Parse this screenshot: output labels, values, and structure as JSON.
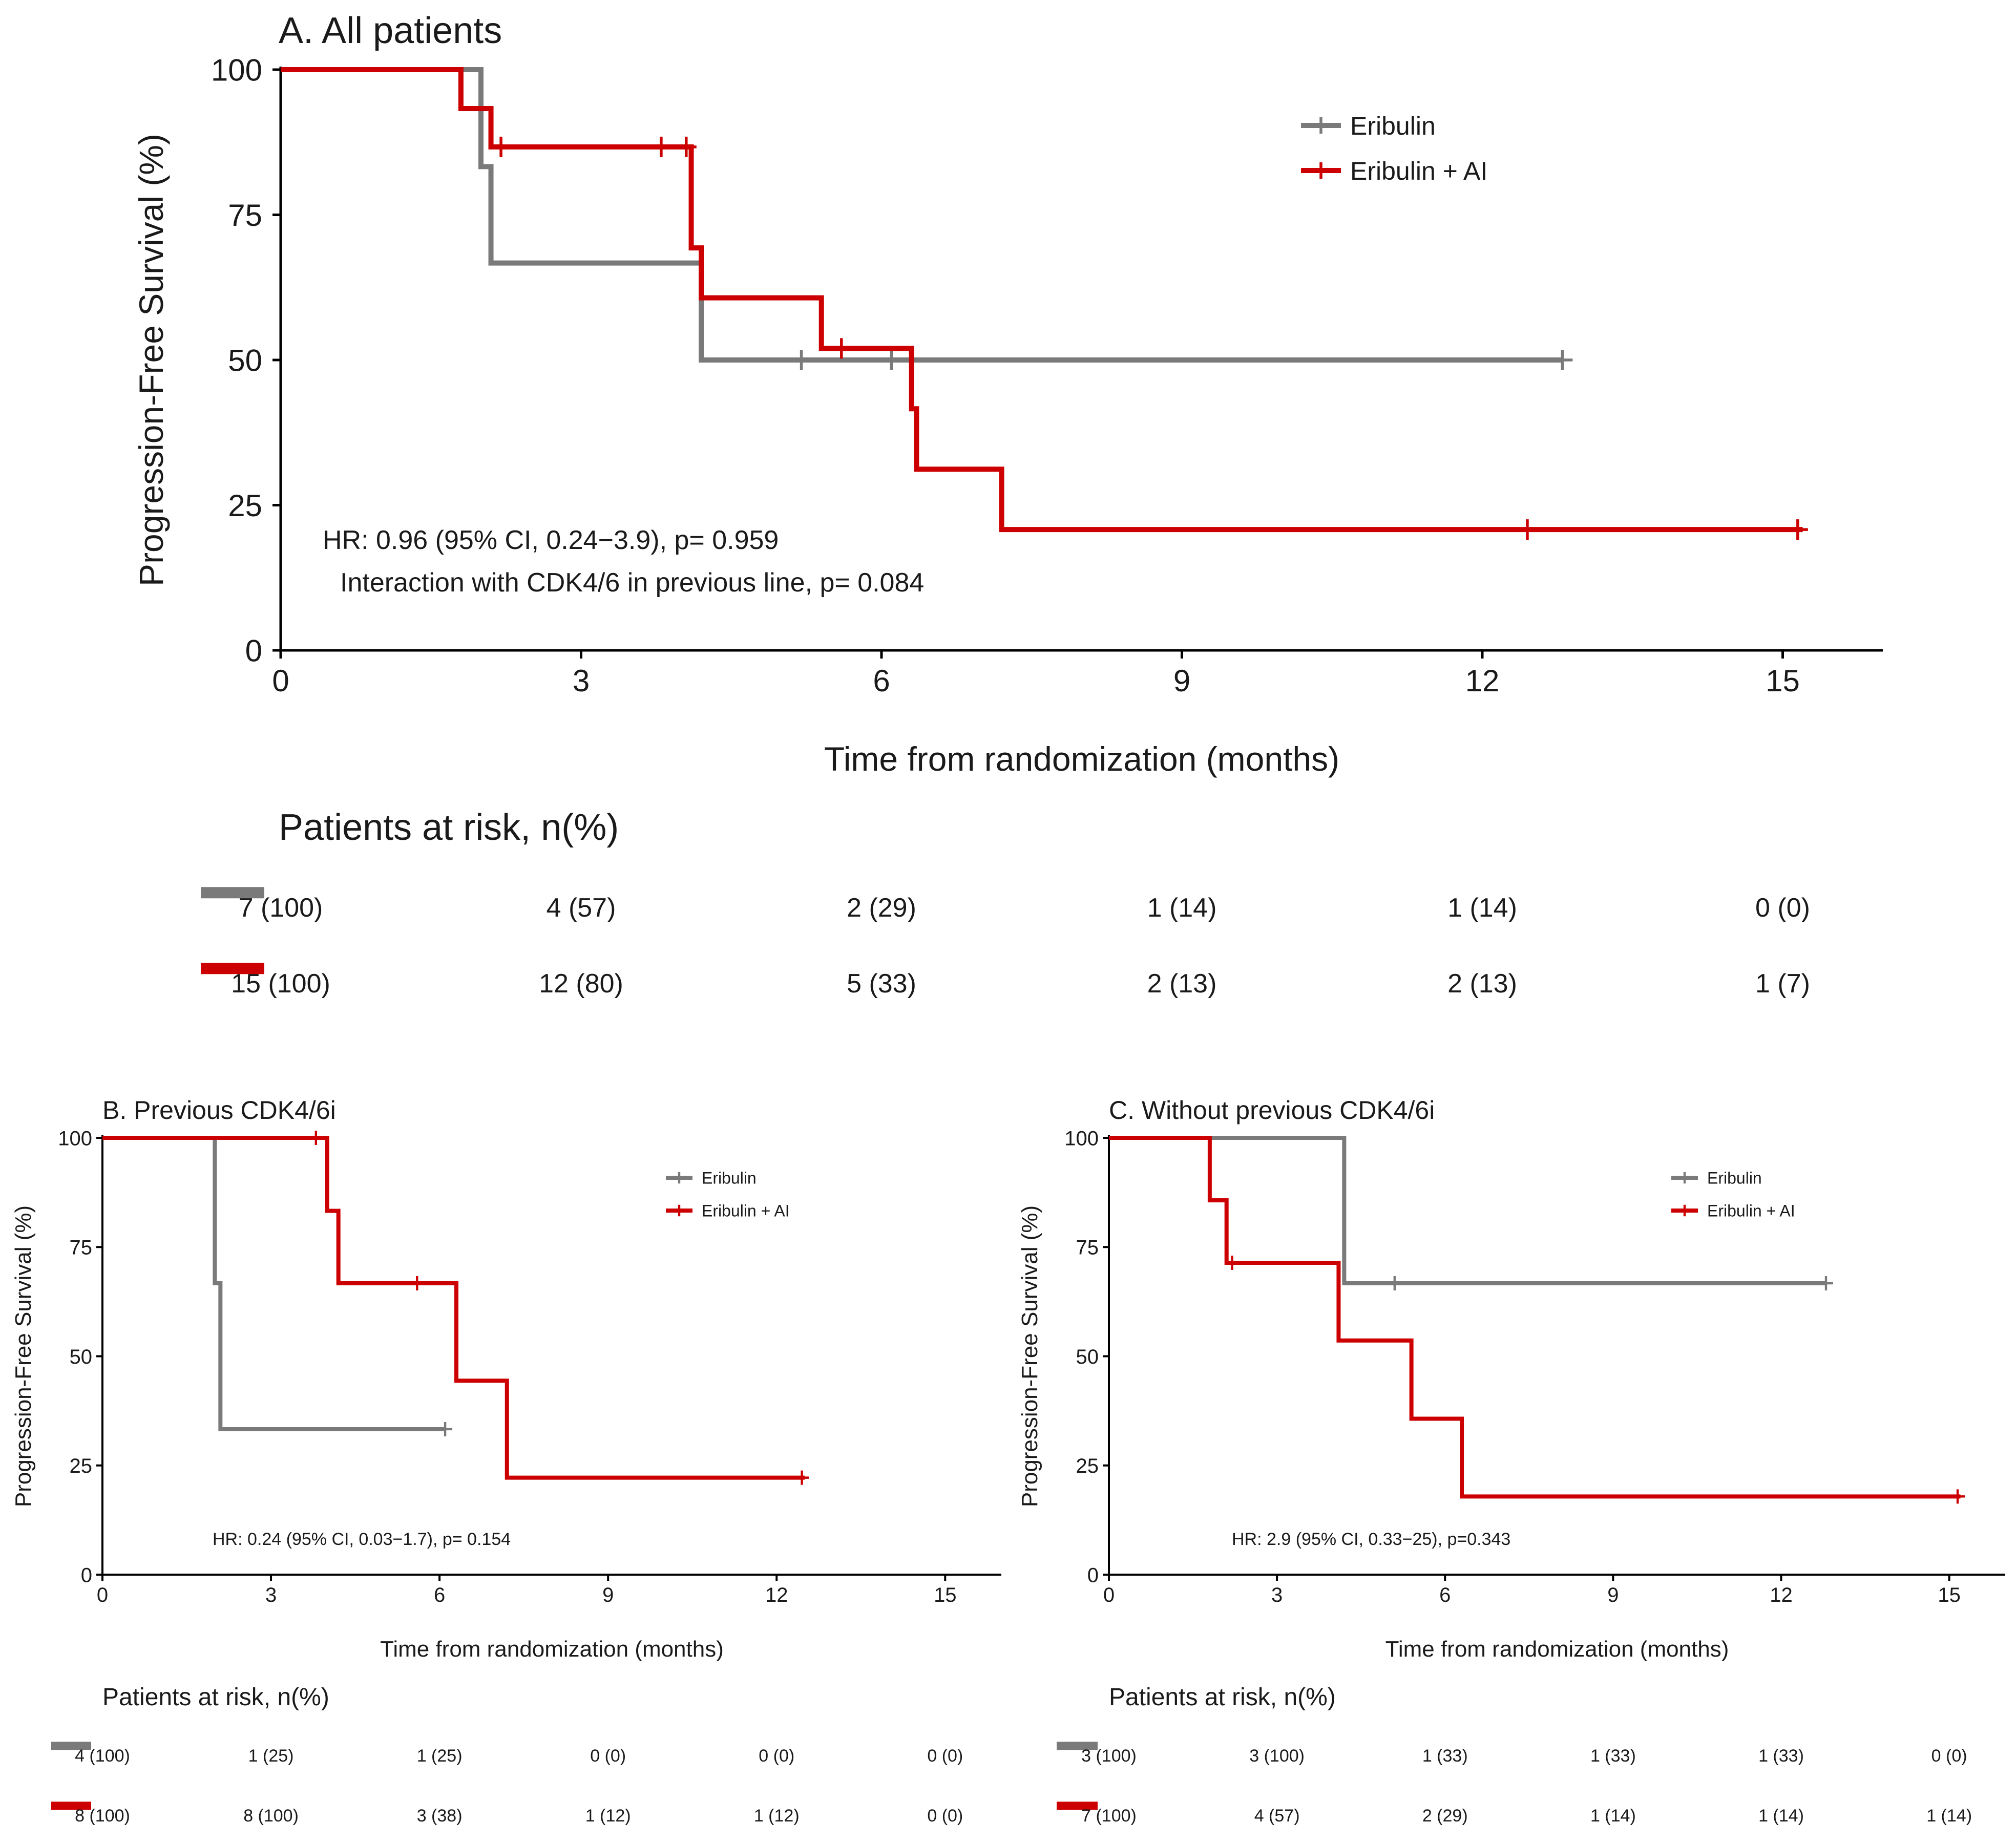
{
  "colors": {
    "eribulin": "#7a7a7a",
    "eribulin_ai": "#cc0000",
    "axis": "#000000",
    "text": "#1a1a1a"
  },
  "chart_data": [
    {
      "id": "A",
      "type": "line",
      "subtype": "kaplan-meier",
      "title": "A. All patients",
      "xlabel": "Time from randomization (months)",
      "ylabel": "Progression-Free Survival (%)",
      "xlim": [
        0,
        16
      ],
      "ylim": [
        0,
        100
      ],
      "x_ticks": [
        0,
        3,
        6,
        9,
        12,
        15
      ],
      "x_tick_labels": [
        "0",
        "3",
        "6",
        "9",
        "12",
        "15"
      ],
      "y_ticks": [
        0,
        25,
        50,
        75,
        100
      ],
      "y_tick_labels": [
        "0",
        "25",
        "50",
        "75",
        "100"
      ],
      "grid": false,
      "legend": {
        "position": "top-right",
        "entries": [
          "Eribulin",
          "Eribulin + AI"
        ]
      },
      "annotations": [
        "HR: 0.96 (95% CI, 0.24−3.9), p= 0.959",
        "Interaction with CDK4/6 in previous line, p= 0.084"
      ],
      "series": [
        {
          "name": "Eribulin",
          "color": "#7a7a7a",
          "steps": [
            [
              0,
              100
            ],
            [
              2.0,
              83.3
            ],
            [
              2.1,
              66.7
            ],
            [
              4.2,
              50
            ],
            [
              12.8,
              50
            ]
          ],
          "censors": [
            [
              5.2,
              50
            ],
            [
              6.1,
              50
            ],
            [
              12.8,
              50
            ]
          ]
        },
        {
          "name": "Eribulin + AI",
          "color": "#cc0000",
          "steps": [
            [
              0,
              100
            ],
            [
              1.8,
              93.3
            ],
            [
              2.1,
              86.7
            ],
            [
              4.1,
              69.3
            ],
            [
              4.2,
              60.7
            ],
            [
              5.4,
              52
            ],
            [
              6.3,
              41.6
            ],
            [
              6.35,
              31.2
            ],
            [
              7.2,
              20.8
            ],
            [
              15.2,
              20.8
            ]
          ],
          "censors": [
            [
              2.2,
              86.7
            ],
            [
              3.8,
              86.7
            ],
            [
              4.05,
              86.7
            ],
            [
              5.6,
              52
            ],
            [
              12.45,
              20.8
            ],
            [
              15.15,
              20.8
            ]
          ]
        }
      ],
      "risk_table": {
        "title": "Patients at risk, n(%)",
        "times": [
          0,
          3,
          6,
          9,
          12,
          15
        ],
        "rows": [
          {
            "name": "Eribulin",
            "values": [
              "7 (100)",
              "4 (57)",
              "2 (29)",
              "1 (14)",
              "1 (14)",
              "0 (0)"
            ]
          },
          {
            "name": "Eribulin + AI",
            "values": [
              "15 (100)",
              "12 (80)",
              "5 (33)",
              "2 (13)",
              "2 (13)",
              "1 (7)"
            ]
          }
        ]
      }
    },
    {
      "id": "B",
      "type": "line",
      "subtype": "kaplan-meier",
      "title": "B. Previous CDK4/6i",
      "xlabel": "Time from randomization (months)",
      "ylabel": "Progression-Free Survival (%)",
      "xlim": [
        0,
        16
      ],
      "ylim": [
        0,
        100
      ],
      "x_ticks": [
        0,
        3,
        6,
        9,
        12,
        15
      ],
      "x_tick_labels": [
        "0",
        "3",
        "6",
        "9",
        "12",
        "15"
      ],
      "y_ticks": [
        0,
        25,
        50,
        75,
        100
      ],
      "y_tick_labels": [
        "0",
        "25",
        "50",
        "75",
        "100"
      ],
      "grid": false,
      "legend": {
        "position": "top-right",
        "entries": [
          "Eribulin",
          "Eribulin + AI"
        ]
      },
      "annotations": [
        "HR: 0.24 (95% CI, 0.03−1.7), p= 0.154"
      ],
      "series": [
        {
          "name": "Eribulin",
          "color": "#7a7a7a",
          "steps": [
            [
              0,
              100
            ],
            [
              2.0,
              66.7
            ],
            [
              2.1,
              33.3
            ],
            [
              6.1,
              33.3
            ]
          ],
          "censors": [
            [
              6.1,
              33.3
            ]
          ]
        },
        {
          "name": "Eribulin + AI",
          "color": "#cc0000",
          "steps": [
            [
              0,
              100
            ],
            [
              4.0,
              83.3
            ],
            [
              4.2,
              66.7
            ],
            [
              6.3,
              44.4
            ],
            [
              7.2,
              22.2
            ],
            [
              12.5,
              22.2
            ]
          ],
          "censors": [
            [
              3.8,
              100
            ],
            [
              5.6,
              66.7
            ],
            [
              12.45,
              22.2
            ]
          ]
        }
      ],
      "risk_table": {
        "title": "Patients at risk, n(%)",
        "times": [
          0,
          3,
          6,
          9,
          12,
          15
        ],
        "rows": [
          {
            "name": "Eribulin",
            "values": [
              "4 (100)",
              "1 (25)",
              "1 (25)",
              "0 (0)",
              "0 (0)",
              "0 (0)"
            ]
          },
          {
            "name": "Eribulin + AI",
            "values": [
              "8 (100)",
              "8 (100)",
              "3 (38)",
              "1 (12)",
              "1 (12)",
              "0 (0)"
            ]
          }
        ]
      }
    },
    {
      "id": "C",
      "type": "line",
      "subtype": "kaplan-meier",
      "title": "C. Without previous CDK4/6i",
      "xlabel": "Time from randomization (months)",
      "ylabel": "Progression-Free Survival (%)",
      "xlim": [
        0,
        16
      ],
      "ylim": [
        0,
        100
      ],
      "x_ticks": [
        0,
        3,
        6,
        9,
        12,
        15
      ],
      "x_tick_labels": [
        "0",
        "3",
        "6",
        "9",
        "12",
        "15"
      ],
      "y_ticks": [
        0,
        25,
        50,
        75,
        100
      ],
      "y_tick_labels": [
        "0",
        "25",
        "50",
        "75",
        "100"
      ],
      "grid": false,
      "legend": {
        "position": "top-right",
        "entries": [
          "Eribulin",
          "Eribulin + AI"
        ]
      },
      "annotations": [
        "HR: 2.9 (95% CI, 0.33−25), p=0.343"
      ],
      "series": [
        {
          "name": "Eribulin",
          "color": "#7a7a7a",
          "steps": [
            [
              0,
              100
            ],
            [
              4.2,
              66.7
            ],
            [
              12.8,
              66.7
            ]
          ],
          "censors": [
            [
              5.1,
              66.7
            ],
            [
              12.8,
              66.7
            ]
          ]
        },
        {
          "name": "Eribulin + AI",
          "color": "#cc0000",
          "steps": [
            [
              0,
              100
            ],
            [
              1.8,
              85.7
            ],
            [
              2.1,
              71.4
            ],
            [
              4.1,
              53.6
            ],
            [
              5.4,
              35.7
            ],
            [
              6.3,
              17.9
            ],
            [
              15.2,
              17.9
            ]
          ],
          "censors": [
            [
              2.2,
              71.4
            ],
            [
              15.15,
              17.9
            ]
          ]
        }
      ],
      "risk_table": {
        "title": "Patients at risk, n(%)",
        "times": [
          0,
          3,
          6,
          9,
          12,
          15
        ],
        "rows": [
          {
            "name": "Eribulin",
            "values": [
              "3 (100)",
              "3 (100)",
              "1 (33)",
              "1 (33)",
              "1 (33)",
              "0 (0)"
            ]
          },
          {
            "name": "Eribulin + AI",
            "values": [
              "7 (100)",
              "4 (57)",
              "2 (29)",
              "1 (14)",
              "1 (14)",
              "1 (14)"
            ]
          }
        ]
      }
    }
  ]
}
